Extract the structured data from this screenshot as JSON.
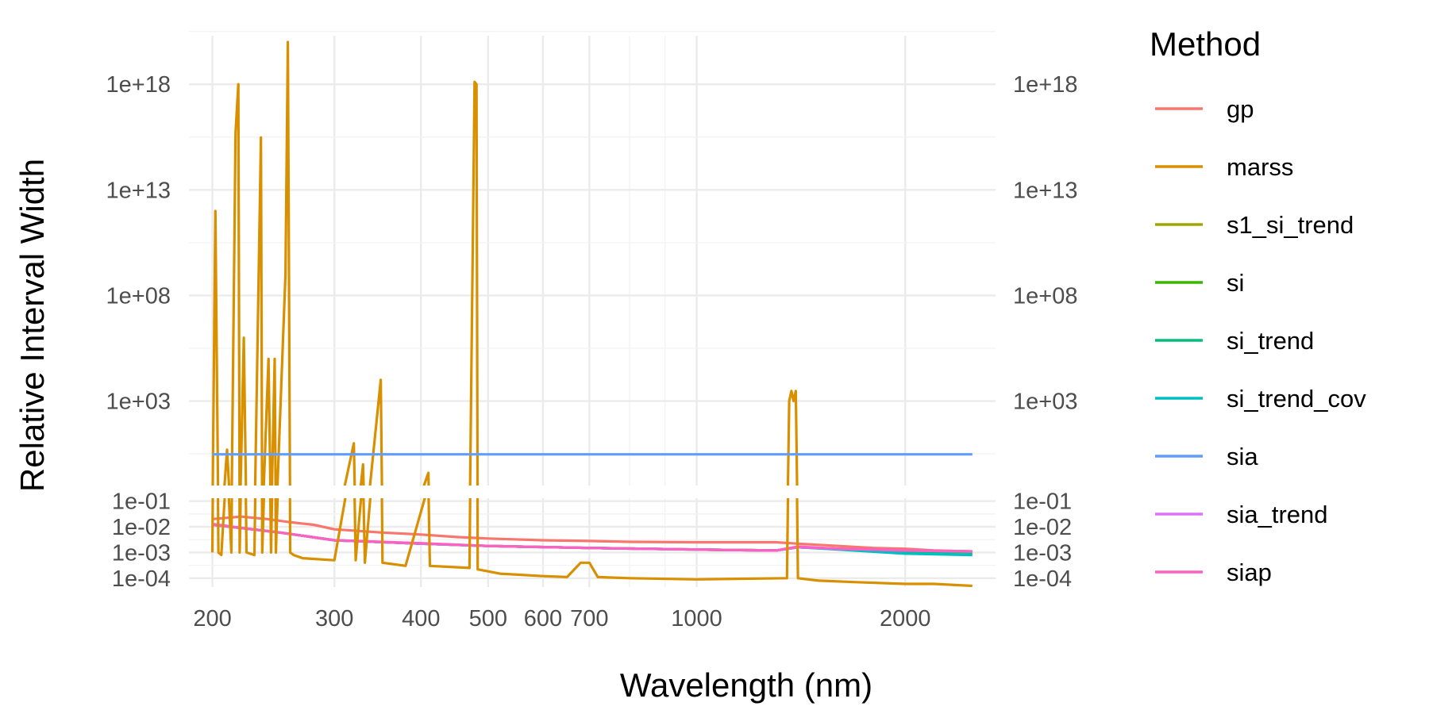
{
  "chart_data": {
    "type": "line",
    "title": "",
    "xlabel": "Wavelength (nm)",
    "ylabel": "Relative Interval Width",
    "x_scale": "log10",
    "xlim": [
      185,
      2700
    ],
    "x_ticks": [
      200,
      300,
      400,
      500,
      600,
      700,
      1000,
      2000
    ],
    "x_tick_labels": [
      "200",
      "300",
      "400",
      "500",
      "600",
      "700",
      "1000",
      "2000"
    ],
    "y_scale": "log10",
    "y_panels": [
      {
        "name": "upper",
        "ylim": [
          0.1,
          2e+20
        ],
        "ticks": [
          1000.0,
          100000000.0,
          10000000000000.0,
          1e+18
        ],
        "tick_labels": [
          "1e+03",
          "1e+08",
          "1e+13",
          "1e+18"
        ]
      },
      {
        "name": "lower",
        "ylim": [
          4.5e-05,
          0.13
        ],
        "ticks": [
          0.1,
          0.01,
          0.001,
          0.0001
        ],
        "tick_labels": [
          "1e-01",
          "1e-02",
          "1e-03",
          "1e-04"
        ]
      }
    ],
    "secondary_y_axis": "duplicate of primary",
    "grid": true,
    "legend": {
      "title": "Method",
      "position": "right"
    },
    "series": [
      {
        "name": "gp",
        "color": "#F8766D",
        "points": [
          [
            200,
            0.02
          ],
          [
            220,
            0.025
          ],
          [
            240,
            0.02
          ],
          [
            260,
            0.015
          ],
          [
            280,
            0.012
          ],
          [
            300,
            0.008
          ],
          [
            350,
            0.006
          ],
          [
            400,
            0.005
          ],
          [
            450,
            0.004
          ],
          [
            500,
            0.0035
          ],
          [
            600,
            0.003
          ],
          [
            700,
            0.0028
          ],
          [
            800,
            0.0026
          ],
          [
            1000,
            0.0025
          ],
          [
            1300,
            0.0025
          ],
          [
            1400,
            0.0022
          ],
          [
            1600,
            0.0018
          ],
          [
            1800,
            0.0015
          ],
          [
            2000,
            0.0014
          ],
          [
            2200,
            0.0012
          ],
          [
            2500,
            0.0011
          ]
        ]
      },
      {
        "name": "marss",
        "color": "#D89000",
        "points": [
          [
            200,
            0.001
          ],
          [
            202,
            1000000000000.0
          ],
          [
            204,
            0.001
          ],
          [
            206,
            0.0008
          ],
          [
            210,
            5
          ],
          [
            213,
            0.001
          ],
          [
            216,
            5000000000000000.0
          ],
          [
            218,
            1e+18
          ],
          [
            219,
            0.001
          ],
          [
            222,
            1000000.0
          ],
          [
            224,
            0.001
          ],
          [
            230,
            0.0008
          ],
          [
            235,
            3000000000000000.0
          ],
          [
            236,
            0.001
          ],
          [
            241,
            100000.0
          ],
          [
            243,
            0.001
          ],
          [
            246,
            100000.0
          ],
          [
            247,
            0.001
          ],
          [
            255,
            1000000000.0
          ],
          [
            257,
            1e+20
          ],
          [
            259,
            0.001
          ],
          [
            262,
            0.0008
          ],
          [
            270,
            0.0006
          ],
          [
            300,
            0.0005
          ],
          [
            320,
            10
          ],
          [
            322,
            0.0005
          ],
          [
            330,
            1
          ],
          [
            332,
            0.0004
          ],
          [
            350,
            10000.0
          ],
          [
            352,
            0.0004
          ],
          [
            380,
            0.0003
          ],
          [
            410,
            0.4
          ],
          [
            412,
            0.0003
          ],
          [
            470,
            0.00025
          ],
          [
            478,
            1.3e+18
          ],
          [
            481,
            1e+18
          ],
          [
            483,
            0.00022
          ],
          [
            520,
            0.00015
          ],
          [
            600,
            0.00012
          ],
          [
            650,
            0.00011
          ],
          [
            680,
            0.0004
          ],
          [
            700,
            0.0004
          ],
          [
            720,
            0.00011
          ],
          [
            800,
            0.0001
          ],
          [
            1000,
            9e-05
          ],
          [
            1350,
            0.0001
          ],
          [
            1360,
            1000.0
          ],
          [
            1370,
            3000.0
          ],
          [
            1380,
            1000.0
          ],
          [
            1390,
            3000.0
          ],
          [
            1400,
            0.0001
          ],
          [
            1500,
            8e-05
          ],
          [
            1700,
            7e-05
          ],
          [
            2000,
            6e-05
          ],
          [
            2200,
            6e-05
          ],
          [
            2500,
            5e-05
          ]
        ]
      },
      {
        "name": "s1_si_trend",
        "color": "#A3A500",
        "points": [
          [
            200,
            0.012
          ],
          [
            220,
            0.009
          ],
          [
            250,
            0.006
          ],
          [
            300,
            0.003
          ],
          [
            400,
            0.0022
          ],
          [
            500,
            0.0018
          ],
          [
            700,
            0.0015
          ],
          [
            1000,
            0.0013
          ],
          [
            1300,
            0.0012
          ],
          [
            1400,
            0.0016
          ],
          [
            1600,
            0.0014
          ],
          [
            2000,
            0.0012
          ],
          [
            2500,
            0.0011
          ]
        ]
      },
      {
        "name": "si",
        "color": "#39B600",
        "points": [
          [
            200,
            0.012
          ],
          [
            220,
            0.009
          ],
          [
            250,
            0.006
          ],
          [
            300,
            0.003
          ],
          [
            400,
            0.0022
          ],
          [
            500,
            0.0018
          ],
          [
            700,
            0.0015
          ],
          [
            1000,
            0.0013
          ],
          [
            1300,
            0.0012
          ],
          [
            1400,
            0.0016
          ],
          [
            1600,
            0.0014
          ],
          [
            2000,
            0.0012
          ],
          [
            2500,
            0.0011
          ]
        ]
      },
      {
        "name": "si_trend",
        "color": "#00BF7D",
        "points": [
          [
            200,
            0.012
          ],
          [
            220,
            0.009
          ],
          [
            250,
            0.006
          ],
          [
            300,
            0.003
          ],
          [
            400,
            0.0022
          ],
          [
            500,
            0.0018
          ],
          [
            700,
            0.0015
          ],
          [
            1000,
            0.0013
          ],
          [
            1300,
            0.0012
          ],
          [
            1400,
            0.0016
          ],
          [
            1600,
            0.0014
          ],
          [
            2000,
            0.0011
          ],
          [
            2500,
            0.001
          ]
        ]
      },
      {
        "name": "si_trend_cov",
        "color": "#00BFC4",
        "points": [
          [
            200,
            0.012
          ],
          [
            220,
            0.009
          ],
          [
            250,
            0.006
          ],
          [
            300,
            0.003
          ],
          [
            400,
            0.0022
          ],
          [
            500,
            0.0018
          ],
          [
            700,
            0.0015
          ],
          [
            1000,
            0.0013
          ],
          [
            1300,
            0.0012
          ],
          [
            1400,
            0.0016
          ],
          [
            1600,
            0.0013
          ],
          [
            2000,
            0.0009
          ],
          [
            2500,
            0.0008
          ]
        ]
      },
      {
        "name": "sia",
        "color": "#619CFF",
        "points": [
          [
            200,
            3
          ],
          [
            2500,
            3
          ]
        ]
      },
      {
        "name": "sia_trend",
        "color": "#DB72FB",
        "points": [
          [
            200,
            0.012
          ],
          [
            220,
            0.009
          ],
          [
            250,
            0.006
          ],
          [
            300,
            0.003
          ],
          [
            400,
            0.0022
          ],
          [
            500,
            0.0018
          ],
          [
            700,
            0.0015
          ],
          [
            1000,
            0.0013
          ],
          [
            1300,
            0.0012
          ],
          [
            1400,
            0.0016
          ],
          [
            1600,
            0.0014
          ],
          [
            2000,
            0.0012
          ],
          [
            2500,
            0.0011
          ]
        ]
      },
      {
        "name": "siap",
        "color": "#FF61C3",
        "points": [
          [
            200,
            0.013
          ],
          [
            220,
            0.009
          ],
          [
            250,
            0.006
          ],
          [
            300,
            0.003
          ],
          [
            400,
            0.0023
          ],
          [
            500,
            0.0018
          ],
          [
            700,
            0.0015
          ],
          [
            1000,
            0.0013
          ],
          [
            1300,
            0.0012
          ],
          [
            1400,
            0.0017
          ],
          [
            1600,
            0.0014
          ],
          [
            2000,
            0.0012
          ],
          [
            2500,
            0.0011
          ]
        ]
      }
    ]
  }
}
